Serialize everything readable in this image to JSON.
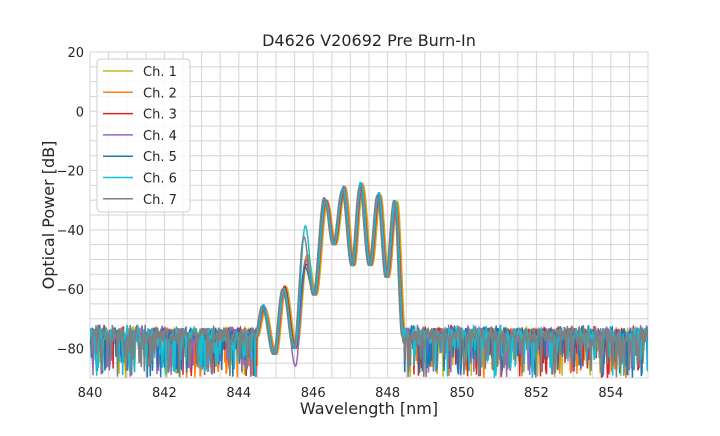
{
  "chart_data": {
    "type": "line",
    "title": "D4626 V20692 Pre Burn-In",
    "xlabel": "Wavelength [nm]",
    "ylabel": "Optical Power [dB]",
    "xlim": [
      840,
      855
    ],
    "ylim": [
      -90,
      20
    ],
    "xticks": [
      "840",
      "842",
      "844",
      "846",
      "848",
      "850",
      "852",
      "854"
    ],
    "yticks": [
      "-80",
      "-60",
      "-40",
      "-20",
      "0",
      "20"
    ],
    "grid": true,
    "legend_position": "top-left",
    "noise_floor_db": [
      -90,
      -72
    ],
    "signal_band_nm": [
      844.45,
      848.42
    ],
    "extrema": [
      [
        844.45,
        -76
      ],
      [
        844.65,
        -66
      ],
      [
        844.95,
        -82
      ],
      [
        845.2,
        -60
      ],
      [
        845.5,
        -80
      ],
      [
        845.78,
        -48
      ],
      [
        846.02,
        -62
      ],
      [
        846.32,
        -30
      ],
      [
        846.55,
        -45
      ],
      [
        846.8,
        -26
      ],
      [
        847.05,
        -52
      ],
      [
        847.27,
        -25
      ],
      [
        847.52,
        -52
      ],
      [
        847.75,
        -28
      ],
      [
        847.97,
        -56
      ],
      [
        848.2,
        -31
      ],
      [
        848.42,
        -76
      ]
    ],
    "series": [
      {
        "name": "Ch. 1",
        "color": "#bcbd22",
        "shift_nm": 0.07,
        "overrides": {}
      },
      {
        "name": "Ch. 2",
        "color": "#ff7f0e",
        "shift_nm": 0.05,
        "overrides": {}
      },
      {
        "name": "Ch. 3",
        "color": "#d62728",
        "shift_nm": 0.03,
        "overrides": {
          "5": -52
        }
      },
      {
        "name": "Ch. 4",
        "color": "#9467bd",
        "shift_nm": 0.02,
        "overrides": {
          "5": -50,
          "4": -86
        }
      },
      {
        "name": "Ch. 5",
        "color": "#1f77b4",
        "shift_nm": 0.0,
        "overrides": {
          "5": -52
        }
      },
      {
        "name": "Ch. 6",
        "color": "#17becf",
        "shift_nm": 0.01,
        "overrides": {
          "5": -38
        }
      },
      {
        "name": "Ch. 7",
        "color": "#7f7f7f",
        "shift_nm": -0.03,
        "overrides": {
          "5": -42
        }
      }
    ]
  }
}
